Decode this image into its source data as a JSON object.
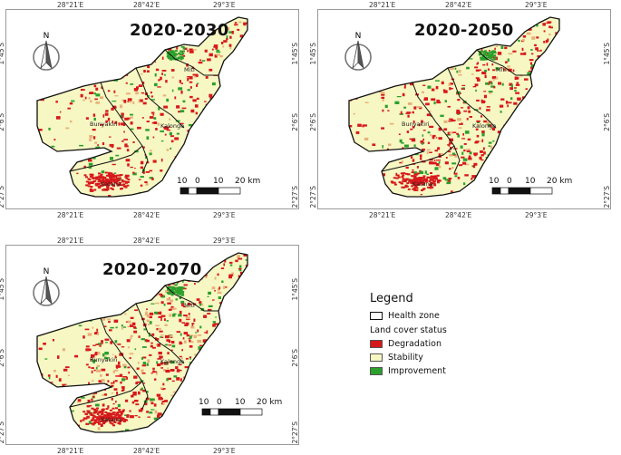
{
  "panels": [
    {
      "title": "2020-2030",
      "lon_ticks": [
        "28°21′E",
        "28°42′E",
        "29°3′E"
      ],
      "lat_ticks": [
        "1°45′S",
        "2°6′S",
        "2°27′S"
      ],
      "places": [
        "Bunyakiri",
        "Kalonge",
        "Miti",
        "Katana"
      ]
    },
    {
      "title": "2020-2050",
      "lon_ticks": [
        "28°21′E",
        "28°42′E",
        "29°3′E"
      ],
      "lat_ticks": [
        "1°45′S",
        "2°6′S",
        "2°27′S"
      ],
      "places": [
        "Bunyakiri",
        "Kalonge",
        "Miti",
        "Katana"
      ]
    },
    {
      "title": "2020-2070",
      "lon_ticks": [
        "28°21′E",
        "28°42′E",
        "29°3′E"
      ],
      "lat_ticks": [
        "1°45′S",
        "2°6′S",
        "2°27′S"
      ],
      "places": [
        "Bunyakiri",
        "Kalonge",
        "Miti",
        "Katana"
      ]
    }
  ],
  "north_arrow": {
    "label": "N"
  },
  "scale_bar": {
    "labels": [
      "10",
      "0",
      "10",
      "20 km"
    ]
  },
  "legend": {
    "title": "Legend",
    "boundary_label": "Health zone",
    "subtitle": "Land cover status",
    "items": [
      {
        "label": "Degradation",
        "color": "#d7191c"
      },
      {
        "label": "Stability",
        "color": "#f7f7c3"
      },
      {
        "label": "Improvement",
        "color": "#2ca02c"
      }
    ]
  },
  "colors": {
    "degradation": "#d7191c",
    "stability": "#f7f7c3",
    "improvement": "#2ca02c",
    "boundary": "#111111"
  }
}
